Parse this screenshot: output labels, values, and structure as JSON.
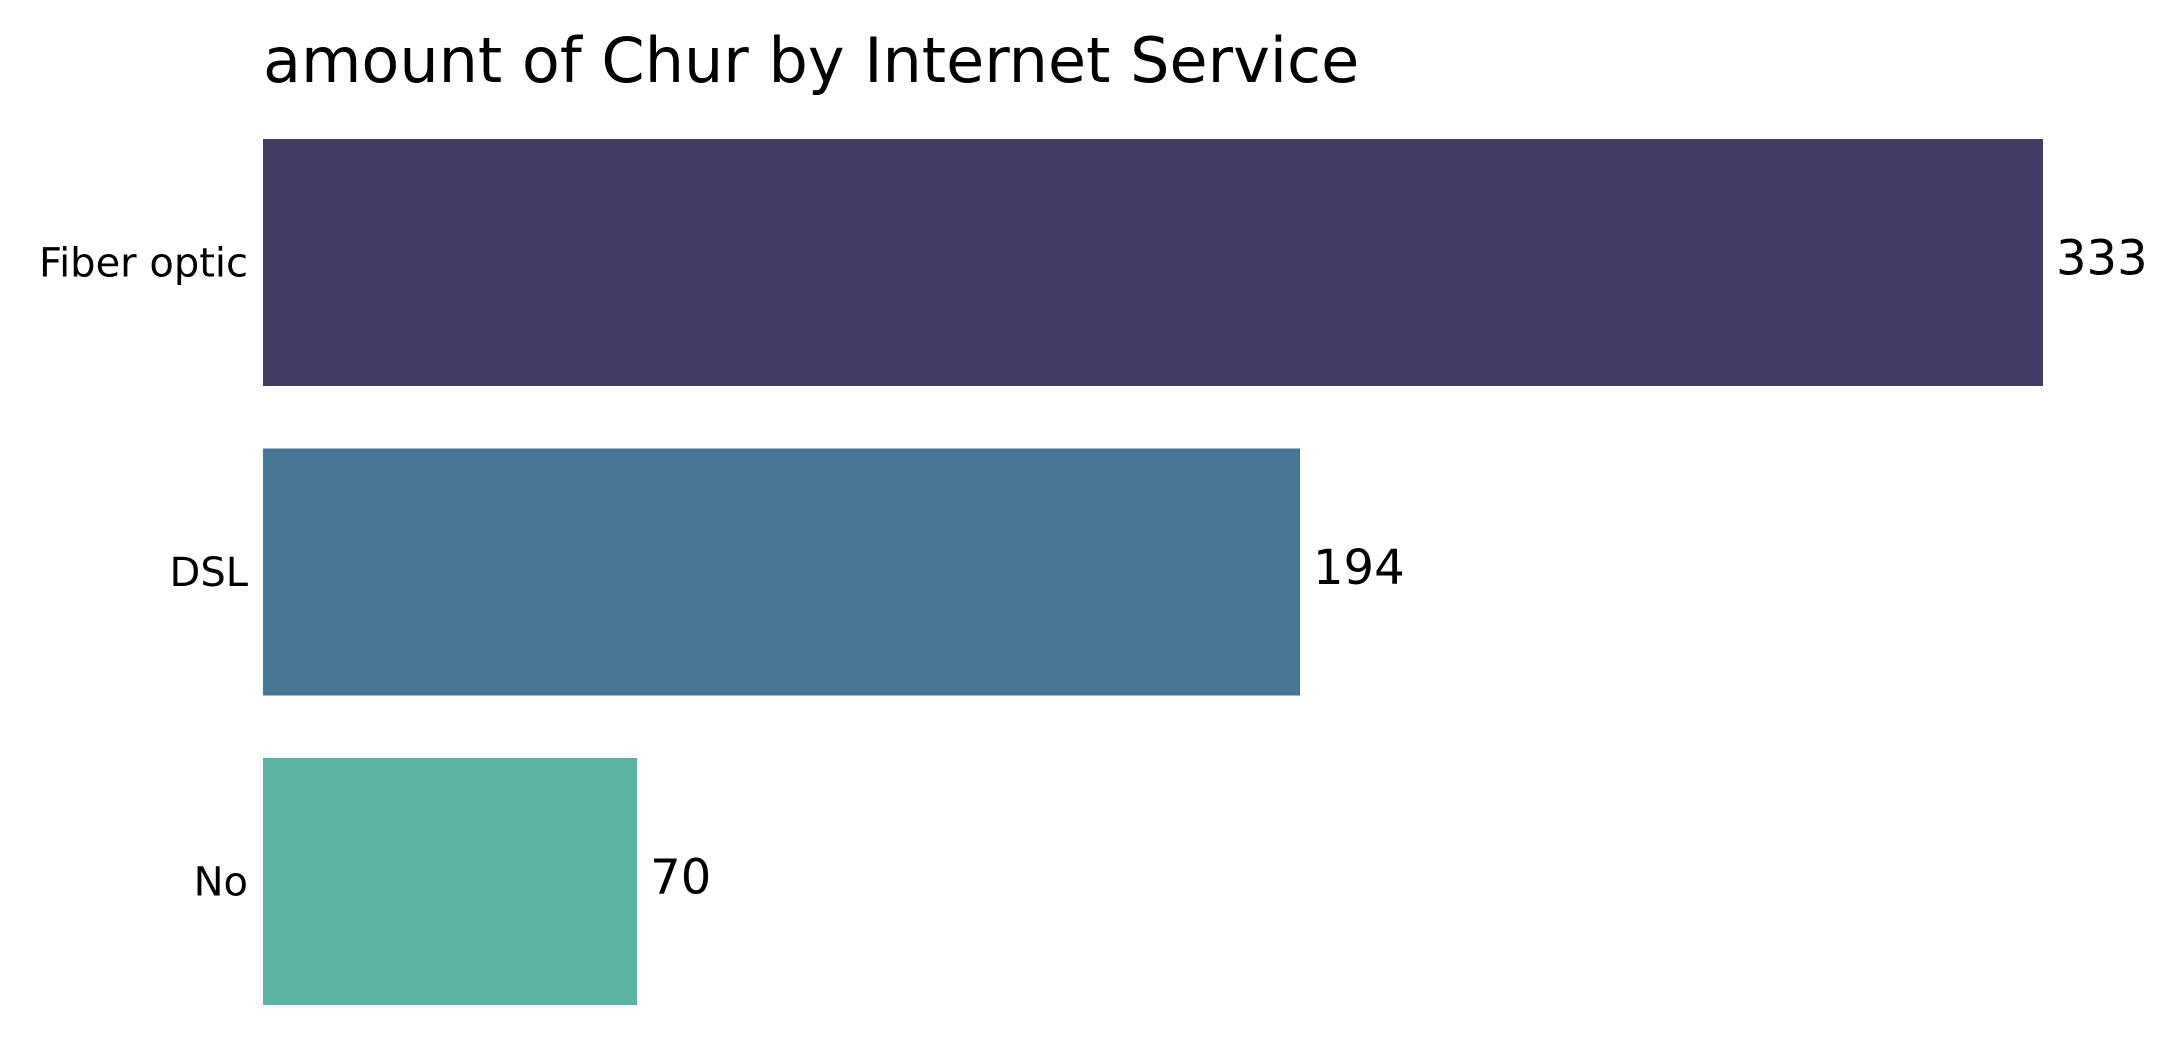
{
  "chart_data": {
    "type": "bar",
    "orientation": "horizontal",
    "title": "amount of Chur by Internet Service",
    "xlabel": "",
    "ylabel": "",
    "categories": [
      "Fiber optic",
      "DSL",
      "No"
    ],
    "values": [
      333,
      194,
      70
    ],
    "data_labels": [
      "333",
      "194",
      "70"
    ],
    "colors": [
      "#443c63",
      "#467794",
      "#5bb3a3"
    ],
    "xlim": [
      0,
      333
    ],
    "grid": false,
    "legend": "none",
    "axes_visible": false
  }
}
